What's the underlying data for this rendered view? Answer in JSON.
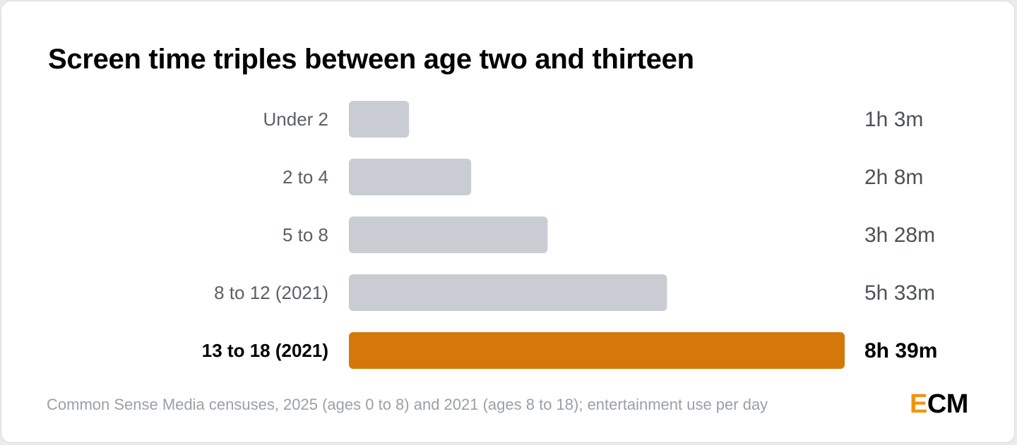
{
  "chart_data": {
    "type": "bar",
    "orientation": "horizontal",
    "title": "Screen time triples between age two and thirteen",
    "categories": [
      "Under 2",
      "2 to 4",
      "5 to 8",
      "8 to 12 (2021)",
      "13 to 18 (2021)"
    ],
    "values": [
      63,
      128,
      208,
      333,
      519
    ],
    "value_labels": [
      "1h 3m",
      "2h 8m",
      "3h 28m",
      "5h 33m",
      "8h 39m"
    ],
    "highlight_index": 4,
    "unit": "minutes per day",
    "xlim": [
      0,
      519
    ],
    "grid": false,
    "legend": "none"
  },
  "colors": {
    "bar": "#c9ccd3",
    "highlight_bar": "#d4780a",
    "label": "#5b5f66",
    "highlight_label": "#000000",
    "value_label": "#4d5157",
    "logo_accent": "#f0940c"
  },
  "footer": {
    "source": "Common Sense Media censuses, 2025 (ages 0 to 8) and 2021 (ages 8 to 18); entertainment use per day"
  },
  "logo": {
    "first": "E",
    "rest": "CM"
  }
}
